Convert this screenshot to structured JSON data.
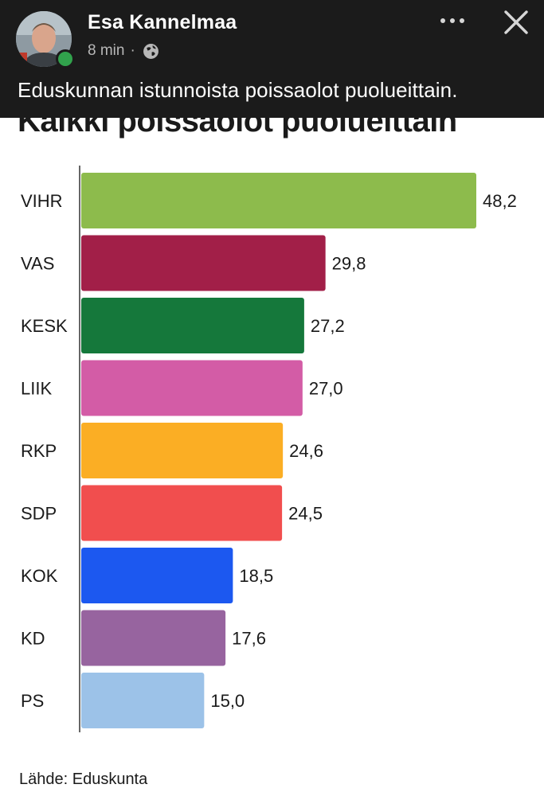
{
  "post": {
    "author": "Esa Kannelmaa",
    "time": "8 min",
    "separator": "·",
    "caption": "Eduskunnan istunnoista poissaolot puolueittain.",
    "icons": {
      "more": "more-options-icon",
      "close": "close-icon",
      "privacy": "globe-icon"
    },
    "online_color": "#31a24c"
  },
  "chart_data": {
    "type": "bar",
    "orientation": "horizontal",
    "title": "Kaikki poissaolot puolueittain",
    "categories": [
      "VIHR",
      "VAS",
      "KESK",
      "LIIK",
      "RKP",
      "SDP",
      "KOK",
      "KD",
      "PS"
    ],
    "values": [
      48.2,
      29.8,
      27.2,
      27.0,
      24.6,
      24.5,
      18.5,
      17.6,
      15.0
    ],
    "value_labels": [
      "48,2",
      "29,8",
      "27,2",
      "27,0",
      "24,6",
      "24,5",
      "18,5",
      "17,6",
      "15,0"
    ],
    "colors": [
      "#8dbb4c",
      "#a21f48",
      "#15783b",
      "#d35ca6",
      "#fbae24",
      "#f14e4e",
      "#1c58f0",
      "#97649f",
      "#9cc2e8"
    ],
    "xlim": [
      0,
      48.2
    ],
    "grid": false,
    "source": "Lähde: Eduskunta"
  }
}
